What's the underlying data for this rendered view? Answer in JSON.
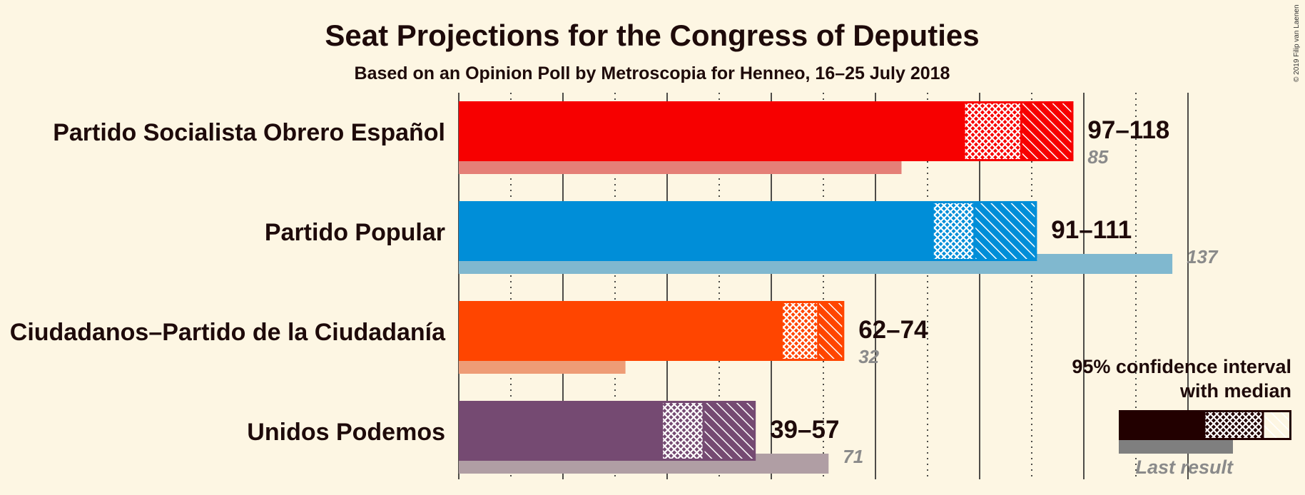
{
  "chart_data": {
    "type": "bar",
    "title": "Seat Projections for the Congress of Deputies",
    "subtitle": "Based on an Opinion Poll by Metroscopia for Henneo, 16–25 July 2018",
    "copyright": "© 2019 Filip van Laenen",
    "xlim": [
      0,
      140
    ],
    "major_ticks": [
      0,
      20,
      40,
      60,
      80,
      100,
      120,
      140
    ],
    "minor_ticks": [
      10,
      30,
      50,
      70,
      90,
      110,
      130
    ],
    "parties": [
      {
        "name": "Partido Socialista Obrero Español",
        "low": 97,
        "median": 108,
        "high": 118,
        "last": 85,
        "range_label": "97–118",
        "last_label": "85",
        "color": "#f70000",
        "light_color": "#e57f77"
      },
      {
        "name": "Partido Popular",
        "low": 91,
        "median": 99,
        "high": 111,
        "last": 137,
        "range_label": "91–111",
        "last_label": "137",
        "color": "#008ed8",
        "light_color": "#80b8cf"
      },
      {
        "name": "Ciudadanos–Partido de la Ciudadanía",
        "low": 62,
        "median": 69,
        "high": 74,
        "last": 32,
        "range_label": "62–74",
        "last_label": "32",
        "color": "#ff4500",
        "light_color": "#ee9c76"
      },
      {
        "name": "Unidos Podemos",
        "low": 39,
        "median": 47,
        "high": 57,
        "last": 71,
        "range_label": "39–57",
        "last_label": "71",
        "color": "#754a72",
        "light_color": "#b09ea4"
      }
    ],
    "legend": {
      "title_line1": "95% confidence interval",
      "title_line2": "with median",
      "last_result": "Last result",
      "color": "#220000",
      "placement": "bottom-right"
    }
  }
}
